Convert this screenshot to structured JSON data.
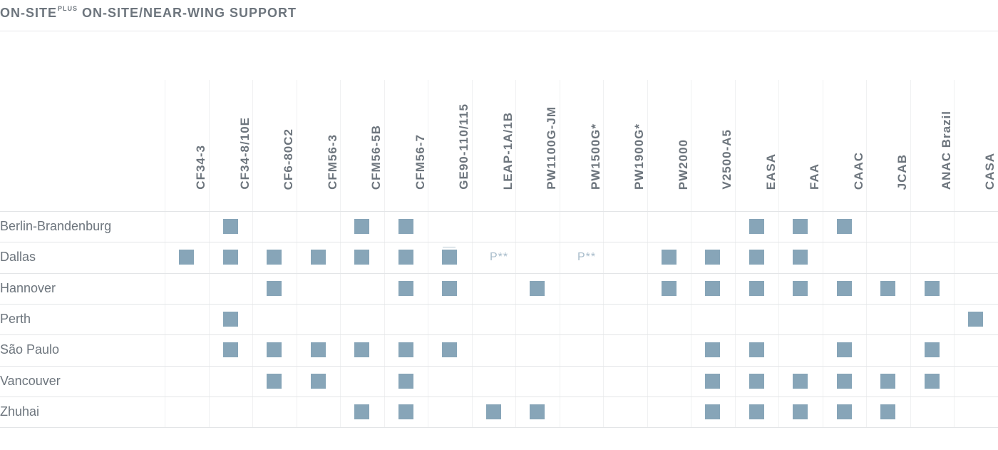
{
  "title": {
    "main": "ON-SITE",
    "sup": "PLUS",
    "rest": " ON-SITE/NEAR-WING SUPPORT"
  },
  "columns": [
    "CF34-3",
    "CF34-8/10E",
    "CF6-80C2",
    "CFM56-3",
    "CFM56-5B",
    "CFM56-7",
    "GE90-110/115",
    "LEAP-1A/1B",
    "PW1100G-JM",
    "PW1500G*",
    "PW1900G*",
    "PW2000",
    "V2500-A5",
    "EASA",
    "FAA",
    "CAAC",
    "JCAB",
    "ANAC Brazil",
    "CASA"
  ],
  "rows": [
    {
      "name": "Berlin-Brandenburg",
      "marks": [
        1,
        4,
        5,
        13,
        14,
        15
      ],
      "pending": []
    },
    {
      "name": "Dallas",
      "marks": [
        0,
        1,
        2,
        3,
        4,
        5,
        6,
        11,
        12,
        13,
        14
      ],
      "pending": [
        {
          "col": 7,
          "text": "P**"
        },
        {
          "col": 9,
          "text": "P**"
        }
      ]
    },
    {
      "name": "Hannover",
      "marks": [
        2,
        5,
        6,
        8,
        11,
        12,
        13,
        14,
        15,
        16,
        17
      ],
      "pending": []
    },
    {
      "name": "Perth",
      "marks": [
        1,
        18
      ],
      "pending": []
    },
    {
      "name": "São Paulo",
      "marks": [
        1,
        2,
        3,
        4,
        5,
        6,
        12,
        13,
        15,
        17
      ],
      "pending": []
    },
    {
      "name": "Vancouver",
      "marks": [
        2,
        3,
        5,
        12,
        13,
        14,
        15,
        16,
        17
      ],
      "pending": []
    },
    {
      "name": "Zhuhai",
      "marks": [
        4,
        5,
        7,
        8,
        12,
        13,
        14,
        15,
        16
      ],
      "pending": []
    }
  ],
  "colors": {
    "mark": "#87a5b8",
    "pending": "#a8bccb",
    "text": "#6d757d"
  }
}
